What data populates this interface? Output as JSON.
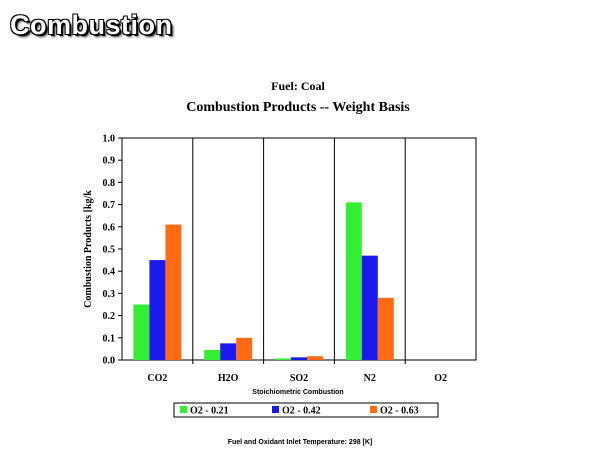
{
  "slide": {
    "title": "Combustion"
  },
  "chart_data": {
    "type": "bar",
    "supertitle": "Fuel:  Coal",
    "title": "Combustion Products -- Weight Basis",
    "xlabel": "Stoichiometric Combustion",
    "ylabel": "Combustion Products [kg/k",
    "footer": "Fuel and Oxidant Inlet Temperature:  298 [K]",
    "categories": [
      "CO2",
      "H2O",
      "SO2",
      "N2",
      "O2"
    ],
    "ylim": [
      0,
      1.0
    ],
    "yticks": [
      "0.0",
      "0.1",
      "0.2",
      "0.3",
      "0.4",
      "0.5",
      "0.6",
      "0.7",
      "0.8",
      "0.9",
      "1.0"
    ],
    "grid": false,
    "legend_position": "bottom",
    "series": [
      {
        "name": "O2 - 0.21",
        "color": "#33ee33",
        "values": [
          0.25,
          0.045,
          0.007,
          0.71,
          0
        ]
      },
      {
        "name": "O2 - 0.42",
        "color": "#1a1aee",
        "values": [
          0.45,
          0.075,
          0.012,
          0.47,
          0
        ]
      },
      {
        "name": "O2 - 0.63",
        "color": "#ff6a13",
        "values": [
          0.61,
          0.1,
          0.017,
          0.28,
          0
        ]
      }
    ]
  }
}
